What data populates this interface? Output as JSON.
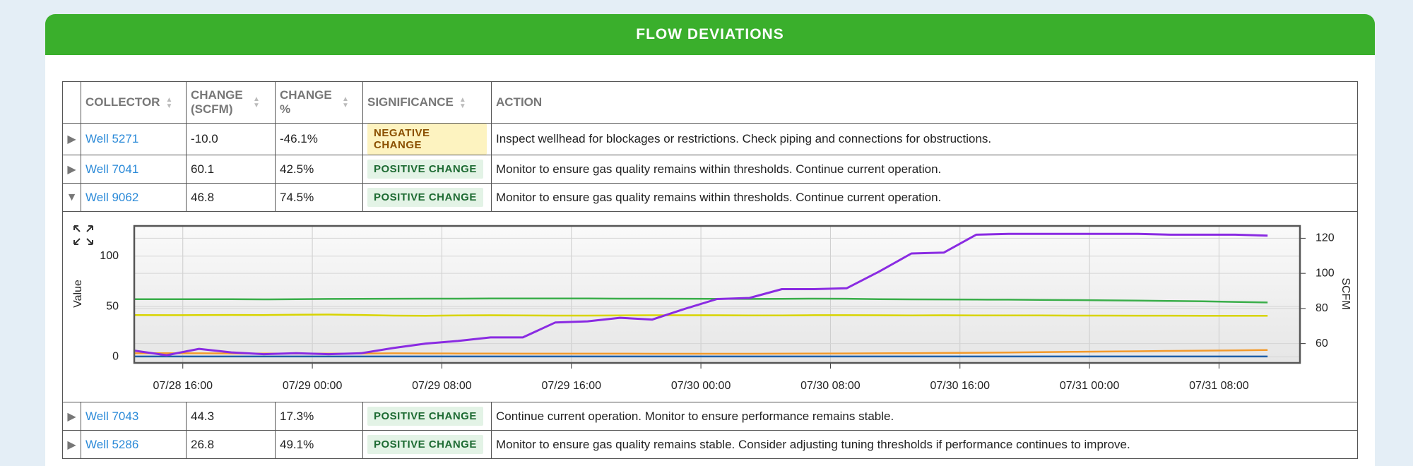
{
  "header": {
    "title": "FLOW DEVIATIONS"
  },
  "table": {
    "columns": [
      "COLLECTOR",
      "CHANGE (SCFM)",
      "CHANGE %",
      "SIGNIFICANCE",
      "ACTION"
    ],
    "rows": [
      {
        "collector": "Well 5271",
        "change_scfm": "-10.0",
        "change_pct": "-46.1%",
        "significance": "NEGATIVE CHANGE",
        "badge_bg": "#fdf3c0",
        "badge_fg": "#8a4f00",
        "action": "Inspect wellhead for blockages or restrictions. Check piping and connections for obstructions.",
        "expanded": false
      },
      {
        "collector": "Well 7041",
        "change_scfm": "60.1",
        "change_pct": "42.5%",
        "significance": "POSITIVE CHANGE",
        "badge_bg": "#e3f3e6",
        "badge_fg": "#1e6b33",
        "action": "Monitor to ensure gas quality remains within thresholds. Continue current operation.",
        "expanded": false
      },
      {
        "collector": "Well 9062",
        "change_scfm": "46.8",
        "change_pct": "74.5%",
        "significance": "POSITIVE CHANGE",
        "badge_bg": "#e3f3e6",
        "badge_fg": "#1e6b33",
        "action": "Monitor to ensure gas quality remains within thresholds. Continue current operation.",
        "expanded": true
      },
      {
        "collector": "Well 7043",
        "change_scfm": "44.3",
        "change_pct": "17.3%",
        "significance": "POSITIVE CHANGE",
        "badge_bg": "#e3f3e6",
        "badge_fg": "#1e6b33",
        "action": "Continue current operation. Monitor to ensure performance remains stable.",
        "expanded": false
      },
      {
        "collector": "Well 5286",
        "change_scfm": "26.8",
        "change_pct": "49.1%",
        "significance": "POSITIVE CHANGE",
        "badge_bg": "#e3f3e6",
        "badge_fg": "#1e6b33",
        "action": "Monitor to ensure gas quality remains stable. Consider adjusting tuning thresholds if performance continues to improve.",
        "expanded": false
      }
    ]
  },
  "chart_data": {
    "type": "line",
    "ylabel": "Value",
    "y2label": "SCFM",
    "x": [
      "07/28 13:00",
      "07/28 15:00",
      "07/28 17:00",
      "07/28 19:00",
      "07/28 21:00",
      "07/28 23:00",
      "07/29 01:00",
      "07/29 03:00",
      "07/29 05:00",
      "07/29 07:00",
      "07/29 09:00",
      "07/29 11:00",
      "07/29 13:00",
      "07/29 15:00",
      "07/29 17:00",
      "07/29 19:00",
      "07/29 21:00",
      "07/29 23:00",
      "07/30 01:00",
      "07/30 03:00",
      "07/30 05:00",
      "07/30 07:00",
      "07/30 09:00",
      "07/30 11:00",
      "07/30 13:00",
      "07/30 15:00",
      "07/30 17:00",
      "07/30 19:00",
      "07/30 21:00",
      "07/30 23:00",
      "07/31 01:00",
      "07/31 03:00",
      "07/31 05:00",
      "07/31 07:00",
      "07/31 09:00",
      "07/31 11:00"
    ],
    "xlim": [
      "07/28 13:00",
      "07/31 13:00"
    ],
    "xticks": [
      "07/28 16:00",
      "07/29 00:00",
      "07/29 08:00",
      "07/29 16:00",
      "07/30 00:00",
      "07/30 08:00",
      "07/30 16:00",
      "07/31 00:00",
      "07/31 08:00"
    ],
    "ylim": [
      -6,
      130
    ],
    "yticks": [
      0,
      50,
      100
    ],
    "y2lim": [
      49,
      127
    ],
    "y2ticks": [
      60,
      80,
      100,
      120
    ],
    "grid": true,
    "series": [
      {
        "color": "#1f5fa8",
        "values": [
          0.4,
          0.4,
          0.4,
          0.4,
          0.4,
          0.4,
          0.4,
          0.4,
          0.4,
          0.4,
          0.4,
          0.4,
          0.4,
          0.4,
          0.4,
          0.4,
          0.4,
          0.4,
          0.4,
          0.4,
          0.4,
          0.4,
          0.4,
          0.4,
          0.4,
          0.4,
          0.4,
          0.4,
          0.4,
          0.4,
          0.4,
          0.4,
          0.4,
          0.4,
          0.4,
          0.4
        ]
      },
      {
        "color": "#f39a2b",
        "values": [
          3.5,
          3.6,
          3.5,
          3.4,
          3.3,
          3.3,
          3.2,
          3.3,
          3.5,
          3.4,
          3.3,
          3.3,
          3.2,
          3.2,
          3.2,
          3.2,
          3.1,
          3.1,
          3.1,
          3.1,
          3.2,
          3.3,
          3.4,
          3.5,
          3.7,
          3.9,
          4.1,
          4.4,
          4.7,
          5.0,
          5.3,
          5.6,
          5.9,
          6.2,
          6.5,
          6.8
        ]
      },
      {
        "color": "#d8d400",
        "values": [
          41.5,
          41.4,
          41.5,
          41.6,
          41.5,
          41.8,
          42.0,
          41.6,
          41.0,
          40.8,
          41.2,
          41.3,
          41.2,
          41.0,
          41.0,
          41.2,
          41.3,
          41.3,
          41.3,
          41.2,
          41.2,
          41.4,
          41.4,
          41.3,
          41.2,
          41.3,
          41.2,
          41.1,
          41.1,
          41.0,
          41.0,
          40.9,
          40.9,
          40.8,
          40.8,
          40.8
        ]
      },
      {
        "color": "#3aae4a",
        "values": [
          57.2,
          57.2,
          57.3,
          57.2,
          57.1,
          57.3,
          57.5,
          57.6,
          57.7,
          57.8,
          57.8,
          57.9,
          58.0,
          58.0,
          57.9,
          57.8,
          57.8,
          57.7,
          57.6,
          57.5,
          57.6,
          57.8,
          57.7,
          57.3,
          57.1,
          57.0,
          56.9,
          56.8,
          56.6,
          56.4,
          56.1,
          55.8,
          55.5,
          55.1,
          54.6,
          54.0
        ]
      },
      {
        "color": "#8a2be2",
        "axis": "y2",
        "values": [
          56,
          53.4,
          57,
          55,
          54,
          54.5,
          54,
          54.5,
          57.5,
          60,
          61.5,
          63.5,
          63.5,
          72,
          72.7,
          74.7,
          73.7,
          79.8,
          85.4,
          86,
          91,
          91,
          91.5,
          101,
          111.3,
          111.8,
          122,
          122.5,
          122.5,
          122.5,
          122.5,
          122.5,
          122,
          122,
          122,
          121.5
        ]
      }
    ]
  }
}
